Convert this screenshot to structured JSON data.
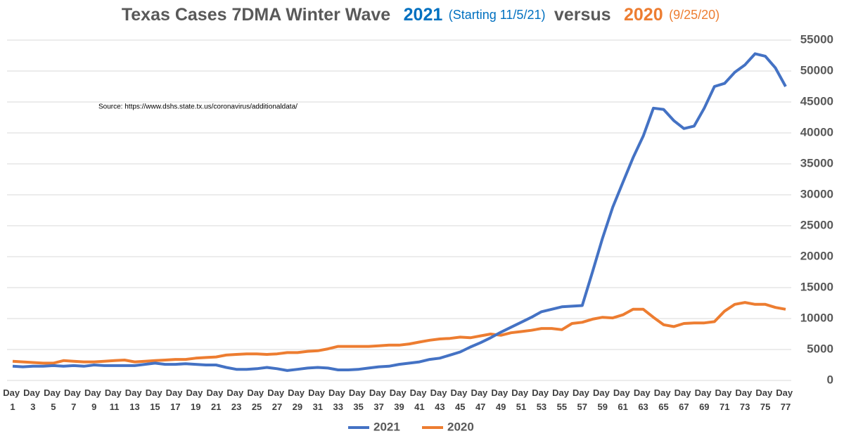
{
  "chart_data": {
    "type": "line",
    "title": [
      "Texas Cases 7DMA Winter Wave",
      "2021",
      "(Starting 11/5/21)",
      "versus",
      "2020",
      "(9/25/20)"
    ],
    "annotation": "Source:  https://www.dshs.state.tx.us/coronavirus/additionaldata/",
    "categories": [
      "Day 1",
      null,
      "Day 3",
      null,
      "Day 5",
      null,
      "Day 7",
      null,
      "Day 9",
      null,
      "Day 11",
      null,
      "Day 13",
      null,
      "Day 15",
      null,
      "Day 17",
      null,
      "Day 19",
      null,
      "Day 21",
      null,
      "Day 23",
      null,
      "Day 25",
      null,
      "Day 27",
      null,
      "Day 29",
      null,
      "Day 31",
      null,
      "Day 33",
      null,
      "Day 35",
      null,
      "Day 37",
      null,
      "Day 39",
      null,
      "Day 41",
      null,
      "Day 43",
      null,
      "Day 45",
      null,
      "Day 47",
      null,
      "Day 49",
      null,
      "Day 51",
      null,
      "Day 53",
      null,
      "Day 55",
      null,
      "Day 57",
      null,
      "Day 59",
      null,
      "Day 61",
      null,
      "Day 63",
      null,
      "Day 65",
      null,
      "Day 67",
      null,
      "Day 69",
      null,
      "Day 71",
      null,
      "Day 73",
      null,
      "Day 75",
      null,
      "Day 77"
    ],
    "series": [
      {
        "name": "2021",
        "color": "#4472c4",
        "values": [
          2300,
          2200,
          2300,
          2300,
          2400,
          2300,
          2400,
          2300,
          2500,
          2400,
          2400,
          2400,
          2400,
          2600,
          2800,
          2600,
          2600,
          2700,
          2600,
          2500,
          2500,
          2100,
          1800,
          1800,
          1900,
          2100,
          1900,
          1600,
          1800,
          2000,
          2100,
          2000,
          1700,
          1700,
          1800,
          2000,
          2200,
          2300,
          2600,
          2800,
          3000,
          3400,
          3600,
          4100,
          4600,
          5400,
          6100,
          6900,
          7800,
          8600,
          9400,
          10200,
          11100,
          11500,
          11900,
          12000,
          12100,
          17500,
          23000,
          28000,
          32000,
          36000,
          39500,
          44000,
          43800,
          42000,
          40700,
          41100,
          44000,
          47500,
          48000,
          49800,
          51000,
          52800,
          52400,
          50500,
          47500
        ]
      },
      {
        "name": "2020",
        "color": "#ed7d31",
        "values": [
          3100,
          3000,
          2900,
          2800,
          2800,
          3200,
          3100,
          3000,
          3000,
          3100,
          3200,
          3300,
          3000,
          3100,
          3200,
          3300,
          3400,
          3400,
          3600,
          3700,
          3800,
          4100,
          4200,
          4300,
          4300,
          4200,
          4300,
          4500,
          4500,
          4700,
          4800,
          5100,
          5500,
          5500,
          5500,
          5500,
          5600,
          5700,
          5700,
          5900,
          6200,
          6500,
          6700,
          6800,
          7000,
          6900,
          7200,
          7500,
          7300,
          7700,
          7900,
          8100,
          8400,
          8400,
          8200,
          9200,
          9400,
          9900,
          10200,
          10100,
          10600,
          11500,
          11500,
          10200,
          9000,
          8700,
          9200,
          9300,
          9300,
          9500,
          11200,
          12300,
          12600,
          12300,
          12300,
          11800,
          11500
        ]
      }
    ],
    "ylim": [
      0,
      55000
    ],
    "yticks": [
      0,
      5000,
      10000,
      15000,
      20000,
      25000,
      30000,
      35000,
      40000,
      45000,
      50000,
      55000
    ],
    "grid": true,
    "legend": "bottom"
  }
}
